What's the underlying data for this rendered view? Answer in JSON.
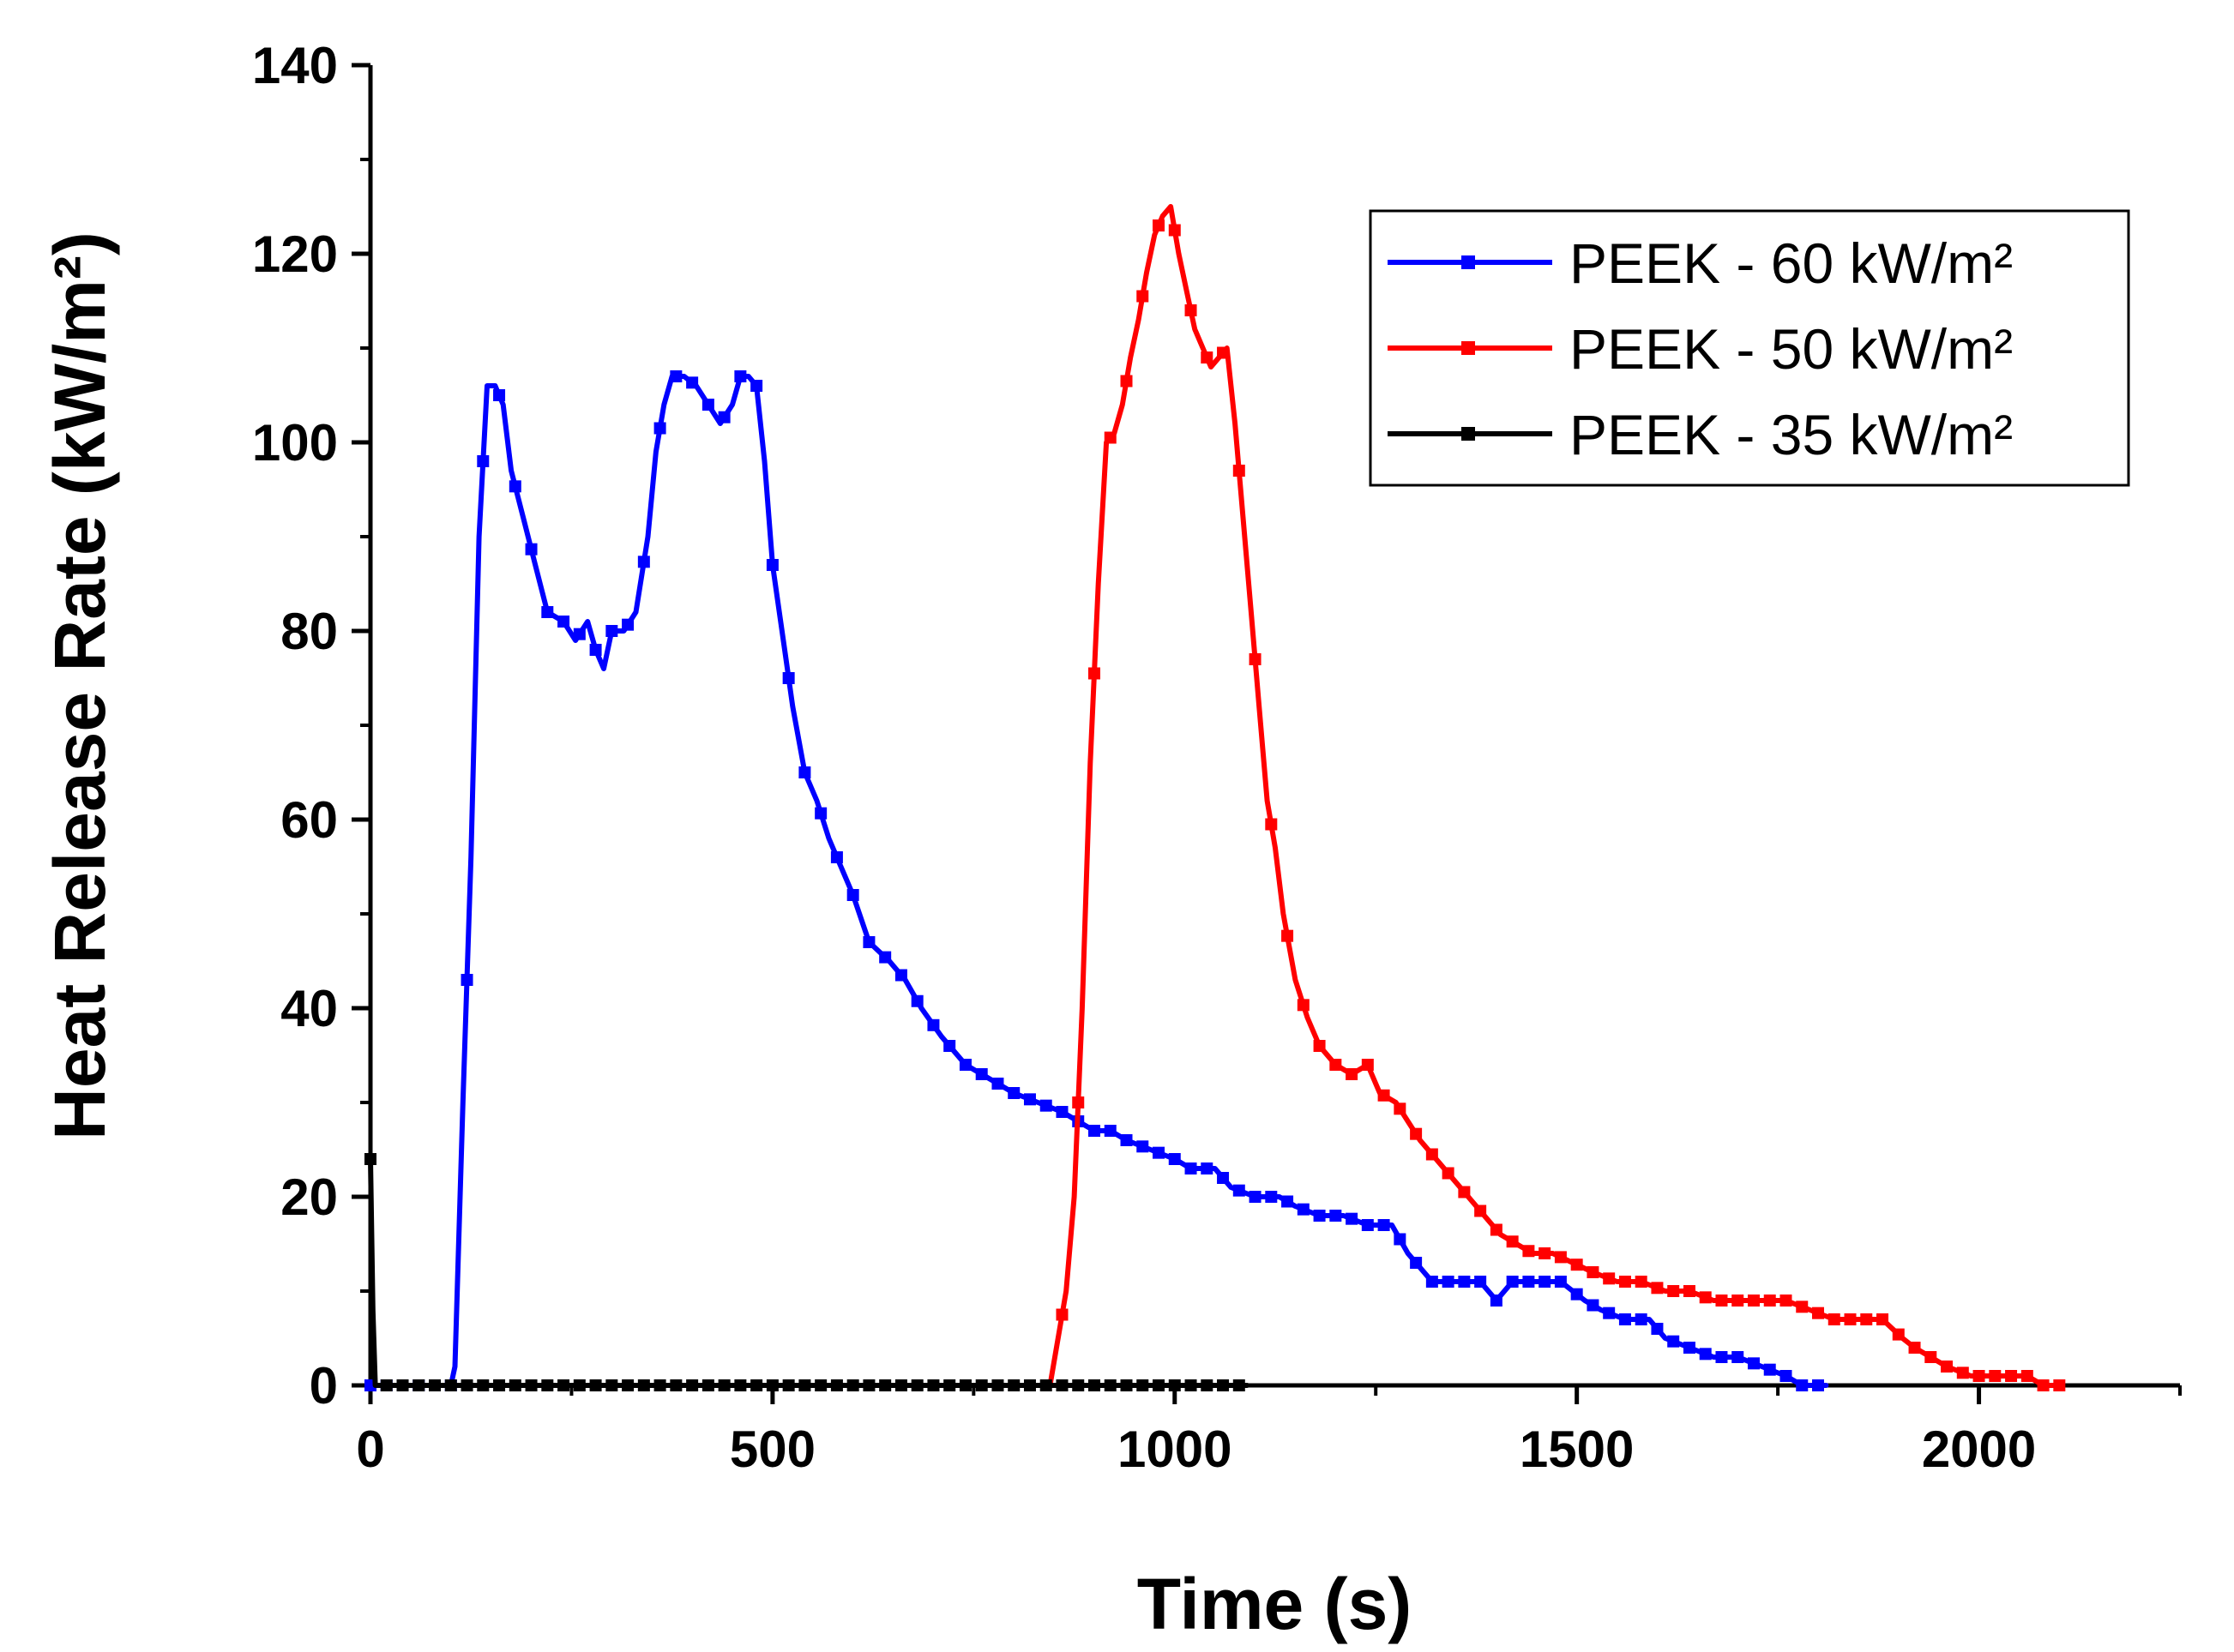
{
  "chart_data": {
    "type": "line",
    "title": "",
    "xlabel": "Time (s)",
    "ylabel": "Heat Release Rate (kW/m²)",
    "xlim": [
      0,
      2250
    ],
    "ylim": [
      0,
      140
    ],
    "x_ticks": [
      "0",
      "500",
      "1000",
      "1500",
      "2000"
    ],
    "y_ticks": [
      "0",
      "20",
      "40",
      "60",
      "80",
      "100",
      "120",
      "140"
    ],
    "grid": false,
    "legend_position": "top-right",
    "series": [
      {
        "name": "PEEK - 60 kW/m²",
        "color": "#0000ff",
        "marker": "square",
        "points": [
          [
            0,
            0
          ],
          [
            100,
            0
          ],
          [
            105,
            2
          ],
          [
            115,
            30
          ],
          [
            125,
            56
          ],
          [
            135,
            90
          ],
          [
            145,
            106
          ],
          [
            155,
            106
          ],
          [
            165,
            104
          ],
          [
            175,
            97
          ],
          [
            190,
            92
          ],
          [
            205,
            87
          ],
          [
            220,
            82
          ],
          [
            240,
            81
          ],
          [
            255,
            79
          ],
          [
            270,
            81
          ],
          [
            280,
            78
          ],
          [
            290,
            76
          ],
          [
            300,
            80
          ],
          [
            315,
            80
          ],
          [
            330,
            82
          ],
          [
            345,
            90
          ],
          [
            355,
            99
          ],
          [
            365,
            104
          ],
          [
            375,
            107
          ],
          [
            390,
            107
          ],
          [
            405,
            106
          ],
          [
            420,
            104
          ],
          [
            435,
            102
          ],
          [
            450,
            104
          ],
          [
            460,
            107
          ],
          [
            470,
            107
          ],
          [
            480,
            106
          ],
          [
            490,
            98
          ],
          [
            500,
            87
          ],
          [
            515,
            78
          ],
          [
            525,
            72
          ],
          [
            540,
            65
          ],
          [
            555,
            62
          ],
          [
            570,
            58
          ],
          [
            585,
            55
          ],
          [
            600,
            52
          ],
          [
            620,
            47
          ],
          [
            645,
            45
          ],
          [
            665,
            43
          ],
          [
            685,
            40
          ],
          [
            710,
            37
          ],
          [
            740,
            34
          ],
          [
            760,
            33
          ],
          [
            780,
            32
          ],
          [
            800,
            31
          ],
          [
            830,
            30
          ],
          [
            860,
            29
          ],
          [
            880,
            28
          ],
          [
            900,
            27
          ],
          [
            920,
            27
          ],
          [
            940,
            26
          ],
          [
            970,
            25
          ],
          [
            1000,
            24
          ],
          [
            1020,
            23
          ],
          [
            1050,
            23
          ],
          [
            1070,
            21
          ],
          [
            1100,
            20
          ],
          [
            1130,
            20
          ],
          [
            1150,
            19
          ],
          [
            1180,
            18
          ],
          [
            1210,
            18
          ],
          [
            1240,
            17
          ],
          [
            1270,
            17
          ],
          [
            1290,
            14
          ],
          [
            1320,
            11
          ],
          [
            1350,
            11
          ],
          [
            1380,
            11
          ],
          [
            1400,
            9
          ],
          [
            1420,
            11
          ],
          [
            1460,
            11
          ],
          [
            1480,
            11
          ],
          [
            1510,
            9
          ],
          [
            1530,
            8
          ],
          [
            1560,
            7
          ],
          [
            1590,
            7
          ],
          [
            1610,
            5
          ],
          [
            1640,
            4
          ],
          [
            1670,
            3
          ],
          [
            1700,
            3
          ],
          [
            1730,
            2
          ],
          [
            1760,
            1
          ],
          [
            1780,
            0
          ],
          [
            1810,
            0
          ]
        ]
      },
      {
        "name": "PEEK - 50 kW/m²",
        "color": "#ff0000",
        "marker": "square",
        "points": [
          [
            845,
            0
          ],
          [
            855,
            5
          ],
          [
            865,
            10
          ],
          [
            875,
            20
          ],
          [
            885,
            40
          ],
          [
            895,
            66
          ],
          [
            905,
            85
          ],
          [
            915,
            100
          ],
          [
            925,
            101
          ],
          [
            935,
            104
          ],
          [
            945,
            109
          ],
          [
            955,
            113
          ],
          [
            965,
            118
          ],
          [
            975,
            122
          ],
          [
            985,
            124
          ],
          [
            995,
            125
          ],
          [
            1005,
            120
          ],
          [
            1015,
            116
          ],
          [
            1025,
            112
          ],
          [
            1035,
            110
          ],
          [
            1045,
            108
          ],
          [
            1055,
            109
          ],
          [
            1065,
            110
          ],
          [
            1075,
            102
          ],
          [
            1085,
            92
          ],
          [
            1095,
            82
          ],
          [
            1105,
            72
          ],
          [
            1115,
            62
          ],
          [
            1125,
            57
          ],
          [
            1135,
            50
          ],
          [
            1150,
            43
          ],
          [
            1165,
            39
          ],
          [
            1180,
            36
          ],
          [
            1200,
            34
          ],
          [
            1220,
            33
          ],
          [
            1240,
            34
          ],
          [
            1255,
            31
          ],
          [
            1275,
            30
          ],
          [
            1290,
            28
          ],
          [
            1305,
            26
          ],
          [
            1325,
            24
          ],
          [
            1345,
            22
          ],
          [
            1365,
            20
          ],
          [
            1385,
            18
          ],
          [
            1405,
            16
          ],
          [
            1425,
            15
          ],
          [
            1445,
            14
          ],
          [
            1470,
            14
          ],
          [
            1495,
            13
          ],
          [
            1520,
            12
          ],
          [
            1550,
            11
          ],
          [
            1580,
            11
          ],
          [
            1610,
            10
          ],
          [
            1640,
            10
          ],
          [
            1670,
            9
          ],
          [
            1700,
            9
          ],
          [
            1730,
            9
          ],
          [
            1760,
            9
          ],
          [
            1790,
            8
          ],
          [
            1820,
            7
          ],
          [
            1850,
            7
          ],
          [
            1880,
            7
          ],
          [
            1905,
            5
          ],
          [
            1920,
            4
          ],
          [
            1940,
            3
          ],
          [
            1960,
            2
          ],
          [
            1990,
            1
          ],
          [
            2010,
            1
          ],
          [
            2040,
            1
          ],
          [
            2060,
            1
          ],
          [
            2080,
            0
          ],
          [
            2100,
            0
          ]
        ]
      },
      {
        "name": "PEEK - 35 kW/m²",
        "color": "#000000",
        "marker": "square",
        "points": [
          [
            0,
            24
          ],
          [
            3,
            8
          ],
          [
            6,
            0
          ],
          [
            1090,
            0
          ]
        ]
      }
    ]
  }
}
